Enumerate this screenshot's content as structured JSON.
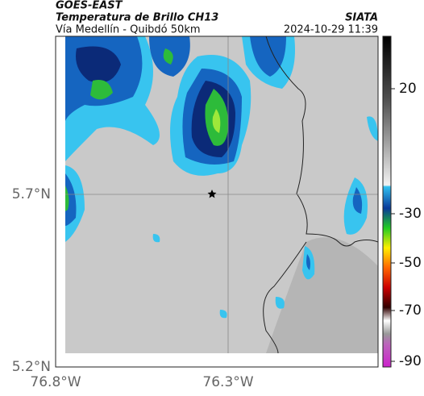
{
  "header": {
    "satellite": "GOES-EAST",
    "product": "Temperatura de Brillo CH13",
    "route": "Vía Medellín - Quibdó 50km",
    "source": "SIATA",
    "datetime": "2024-10-29 11:39"
  },
  "map": {
    "lat_labels": [
      "5.7°N",
      "5.2°N"
    ],
    "lon_labels": [
      "76.8°W",
      "76.3°W"
    ]
  },
  "colorbar": {
    "labels": [
      "20",
      "-30",
      "-50",
      "-70",
      "-90"
    ]
  }
}
